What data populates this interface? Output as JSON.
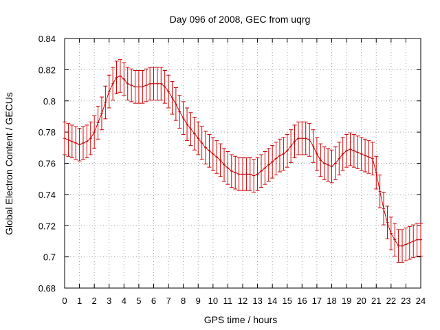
{
  "chart_data": {
    "type": "line",
    "title": "Day 096 of 2008, GEC from uqrg",
    "xlabel": "GPS time / hours",
    "ylabel": "Global Electron Content / GECUs",
    "xlim": [
      0,
      24
    ],
    "ylim": [
      0.68,
      0.84
    ],
    "xticks": [
      "0",
      "1",
      "2",
      "3",
      "4",
      "5",
      "6",
      "7",
      "8",
      "9",
      "10",
      "11",
      "12",
      "13",
      "14",
      "15",
      "16",
      "17",
      "18",
      "19",
      "20",
      "21",
      "22",
      "23",
      "24"
    ],
    "yticks": [
      "0.68",
      "0.7",
      "0.72",
      "0.74",
      "0.76",
      "0.78",
      "0.8",
      "0.82",
      "0.84"
    ],
    "grid": true,
    "series": [
      {
        "name": "GEC",
        "color": "#cc0000",
        "error": 0.0105,
        "x": [
          0,
          0.25,
          0.5,
          0.75,
          1,
          1.25,
          1.5,
          1.75,
          2,
          2.25,
          2.5,
          2.75,
          3,
          3.25,
          3.5,
          3.75,
          4,
          4.25,
          4.5,
          4.75,
          5,
          5.25,
          5.5,
          5.75,
          6,
          6.25,
          6.5,
          6.75,
          7,
          7.25,
          7.5,
          7.75,
          8,
          8.25,
          8.5,
          8.75,
          9,
          9.25,
          9.5,
          9.75,
          10,
          10.25,
          10.5,
          10.75,
          11,
          11.25,
          11.5,
          11.75,
          12,
          12.25,
          12.5,
          12.75,
          13,
          13.25,
          13.5,
          13.75,
          14,
          14.25,
          14.5,
          14.75,
          15,
          15.25,
          15.5,
          15.75,
          16,
          16.25,
          16.5,
          16.75,
          17,
          17.25,
          17.5,
          17.75,
          18,
          18.25,
          18.5,
          18.75,
          19,
          19.25,
          19.5,
          19.75,
          20,
          20.25,
          20.5,
          20.75,
          21,
          21.25,
          21.5,
          21.75,
          22,
          22.25,
          22.5,
          22.75,
          23,
          23.25,
          23.5,
          23.75,
          24
        ],
        "values": [
          0.776,
          0.775,
          0.774,
          0.773,
          0.772,
          0.773,
          0.774,
          0.776,
          0.78,
          0.786,
          0.792,
          0.799,
          0.806,
          0.811,
          0.815,
          0.816,
          0.814,
          0.811,
          0.81,
          0.809,
          0.809,
          0.809,
          0.81,
          0.811,
          0.811,
          0.811,
          0.811,
          0.809,
          0.806,
          0.802,
          0.798,
          0.793,
          0.789,
          0.785,
          0.782,
          0.779,
          0.776,
          0.773,
          0.77,
          0.768,
          0.766,
          0.764,
          0.762,
          0.759,
          0.757,
          0.755,
          0.754,
          0.753,
          0.753,
          0.753,
          0.753,
          0.752,
          0.753,
          0.755,
          0.757,
          0.759,
          0.761,
          0.763,
          0.765,
          0.766,
          0.768,
          0.771,
          0.774,
          0.776,
          0.776,
          0.776,
          0.775,
          0.771,
          0.766,
          0.762,
          0.76,
          0.759,
          0.758,
          0.76,
          0.763,
          0.766,
          0.768,
          0.769,
          0.768,
          0.767,
          0.766,
          0.765,
          0.764,
          0.763,
          0.754,
          0.742,
          0.731,
          0.722,
          0.715,
          0.711,
          0.707,
          0.707,
          0.708,
          0.709,
          0.71,
          0.711,
          0.711
        ]
      }
    ]
  }
}
